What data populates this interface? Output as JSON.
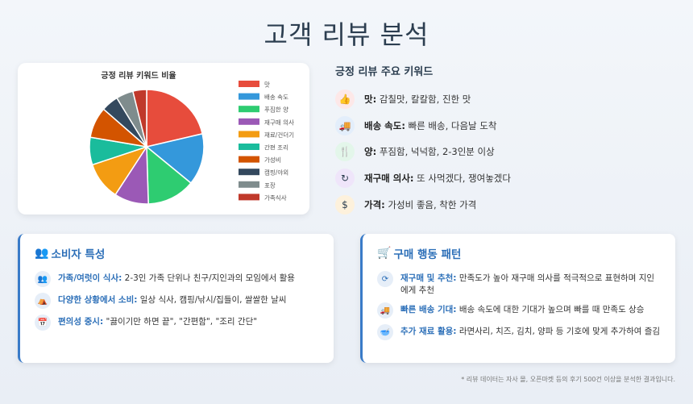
{
  "page": {
    "title": "고객 리뷰 분석"
  },
  "chart_data": {
    "type": "pie",
    "title": "긍정 리뷰 키워드 비율",
    "legend_position": "right",
    "slices": [
      {
        "label": "맛",
        "value": 22,
        "color": "#e74c3c"
      },
      {
        "label": "배송 속도",
        "value": 15,
        "color": "#3498db"
      },
      {
        "label": "푸짐한 양",
        "value": 14,
        "color": "#2ecc71"
      },
      {
        "label": "재구매 의사",
        "value": 10,
        "color": "#9b59b6"
      },
      {
        "label": "재료/건더기",
        "value": 11,
        "color": "#f39c12"
      },
      {
        "label": "간편 조리",
        "value": 8,
        "color": "#1abc9c"
      },
      {
        "label": "가성비",
        "value": 9,
        "color": "#d35400"
      },
      {
        "label": "캠핑/야외",
        "value": 5,
        "color": "#34495e"
      },
      {
        "label": "포장",
        "value": 5,
        "color": "#7f8c8d"
      },
      {
        "label": "가족식사",
        "value": 4,
        "color": "#c0392b"
      }
    ]
  },
  "keywords": {
    "heading": "긍정 리뷰 주요 키워드",
    "items": [
      {
        "icon": "thumbs-up-icon",
        "glyph": "👍",
        "bg": "#fde8e8",
        "label": "맛:",
        "text": " 감칠맛, 칼칼함, 진한 맛"
      },
      {
        "icon": "truck-icon",
        "glyph": "🚚",
        "bg": "#e3eefb",
        "label": "배송 속도:",
        "text": " 빠른 배송, 다음날 도착"
      },
      {
        "icon": "utensils-icon",
        "glyph": "🍴",
        "bg": "#e3f6ea",
        "label": "양:",
        "text": " 푸짐함, 넉넉함, 2-3인분 이상"
      },
      {
        "icon": "redo-icon",
        "glyph": "↻",
        "bg": "#efe5fa",
        "label": "재구매 의사:",
        "text": " 또 사먹겠다, 쟁여놓겠다"
      },
      {
        "icon": "dollar-icon",
        "glyph": "$",
        "bg": "#fdf1dc",
        "label": "가격:",
        "text": " 가성비 좋음, 착한 가격"
      }
    ]
  },
  "consumer": {
    "title": "소비자 특성",
    "rows": [
      {
        "icon": "users-icon",
        "glyph": "👥",
        "label": "가족/여럿이 식사:",
        "text": " 2-3인 가족 단위나 친구/지인과의 모임에서 활용"
      },
      {
        "icon": "campground-icon",
        "glyph": "⛺",
        "label": "다양한 상황에서 소비:",
        "text": " 일상 식사, 캠핑/낚시/집들이, 쌀쌀한 날씨"
      },
      {
        "icon": "calendar-icon",
        "glyph": "📅",
        "label": "편의성 중시:",
        "text": " \"끓이기만 하면 끝\", \"간편함\", \"조리 간단\""
      }
    ]
  },
  "purchase": {
    "title": "구매 행동 패턴",
    "rows": [
      {
        "icon": "sync-icon",
        "glyph": "⟳",
        "label": "재구매 및 추천:",
        "text": " 만족도가 높아 재구매 의사를 적극적으로 표현하며 지인에게 추천"
      },
      {
        "icon": "shipping-icon",
        "glyph": "🚚",
        "label": "빠른 배송 기대:",
        "text": " 배송 속도에 대한 기대가 높으며 빠를 때 만족도 상승"
      },
      {
        "icon": "bowl-icon",
        "glyph": "🥣",
        "label": "추가 재료 활용:",
        "text": " 라면사리, 치즈, 김치, 양파 등 기호에 맞게 추가하여 즐김"
      }
    ]
  },
  "footnote": "* 리뷰 데이터는 자사 몰, 오픈마켓 등의 후기 500건 이상을 분석한 결과입니다."
}
